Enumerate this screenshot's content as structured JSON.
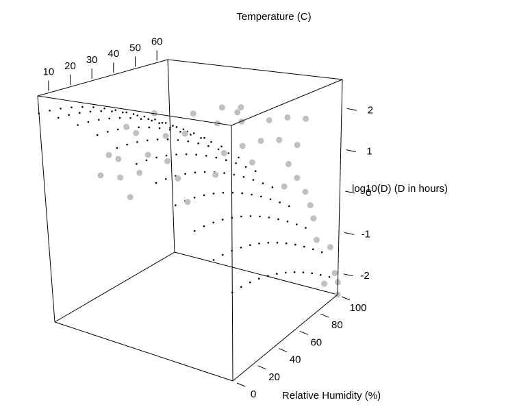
{
  "chart_data": {
    "type": "scatter",
    "subtype": "3d-surface-with-observations",
    "title": "",
    "axes": {
      "temperature": {
        "label": "Temperature (C)",
        "ticks": [
          10,
          20,
          30,
          40,
          50,
          60
        ],
        "range": [
          5,
          65
        ]
      },
      "humidity": {
        "label": "Relative Humidity (%)",
        "ticks": [
          0,
          20,
          40,
          60,
          80,
          100
        ],
        "range": [
          0,
          100
        ]
      },
      "logD": {
        "label": "log10(D) (D in hours)",
        "ticks": [
          2,
          1,
          0,
          -1,
          -2
        ],
        "range": [
          -2.5,
          2.7
        ]
      }
    },
    "surface": {
      "style": "dotted grid",
      "color": "#000000",
      "temperature_values": [
        5,
        10,
        15,
        20,
        25,
        30,
        35,
        40,
        45,
        50,
        55,
        60,
        65
      ],
      "humidity_values": [
        0,
        10,
        20,
        30,
        40,
        50,
        60,
        70,
        80,
        90,
        100
      ],
      "model": "logD = 2.3 - 0.0003*RH^2 - 0.0004*(T-5)^2"
    },
    "observations": {
      "color": "#c0c0c0",
      "points": [
        {
          "T": 10,
          "RH": 55,
          "logD": 2.6
        },
        {
          "T": 20,
          "RH": 65,
          "logD": 2.5
        },
        {
          "T": 30,
          "RH": 70,
          "logD": 2.5
        },
        {
          "T": 35,
          "RH": 75,
          "logD": 2.45
        },
        {
          "T": 36,
          "RH": 72,
          "logD": 2.3
        },
        {
          "T": 10,
          "RH": 40,
          "logD": 2.2
        },
        {
          "T": 10,
          "RH": 45,
          "logD": 2.1
        },
        {
          "T": 20,
          "RH": 50,
          "logD": 1.9
        },
        {
          "T": 25,
          "RH": 55,
          "logD": 1.9
        },
        {
          "T": 35,
          "RH": 62,
          "logD": 2.0
        },
        {
          "T": 40,
          "RH": 70,
          "logD": 2.0
        },
        {
          "T": 45,
          "RH": 80,
          "logD": 2.0
        },
        {
          "T": 50,
          "RH": 85,
          "logD": 2.0
        },
        {
          "T": 55,
          "RH": 90,
          "logD": 1.9
        },
        {
          "T": 10,
          "RH": 30,
          "logD": 1.5
        },
        {
          "T": 10,
          "RH": 35,
          "logD": 1.45
        },
        {
          "T": 20,
          "RH": 40,
          "logD": 1.4
        },
        {
          "T": 25,
          "RH": 45,
          "logD": 1.2
        },
        {
          "T": 40,
          "RH": 60,
          "logD": 1.2
        },
        {
          "T": 45,
          "RH": 65,
          "logD": 1.3
        },
        {
          "T": 50,
          "RH": 70,
          "logD": 1.35
        },
        {
          "T": 55,
          "RH": 75,
          "logD": 1.3
        },
        {
          "T": 60,
          "RH": 80,
          "logD": 1.1
        },
        {
          "T": 10,
          "RH": 25,
          "logD": 1.0
        },
        {
          "T": 15,
          "RH": 30,
          "logD": 0.9
        },
        {
          "T": 20,
          "RH": 35,
          "logD": 0.95
        },
        {
          "T": 30,
          "RH": 45,
          "logD": 0.7
        },
        {
          "T": 40,
          "RH": 55,
          "logD": 0.65
        },
        {
          "T": 50,
          "RH": 65,
          "logD": 0.8
        },
        {
          "T": 60,
          "RH": 75,
          "logD": 0.6
        },
        {
          "T": 60,
          "RH": 80,
          "logD": 0.3
        },
        {
          "T": 55,
          "RH": 78,
          "logD": 0.2
        },
        {
          "T": 60,
          "RH": 85,
          "logD": 0.0
        },
        {
          "T": 15,
          "RH": 35,
          "logD": 0.5
        },
        {
          "T": 30,
          "RH": 50,
          "logD": 0.2
        },
        {
          "T": 60,
          "RH": 88,
          "logD": -0.3
        },
        {
          "T": 60,
          "RH": 90,
          "logD": -0.6
        },
        {
          "T": 60,
          "RH": 92,
          "logD": -1.1
        },
        {
          "T": 65,
          "RH": 95,
          "logD": -1.4
        },
        {
          "T": 65,
          "RH": 98,
          "logD": -2.0
        },
        {
          "T": 60,
          "RH": 97,
          "logD": -2.1
        },
        {
          "T": 65,
          "RH": 100,
          "logD": -2.2
        },
        {
          "T": 65,
          "RH": 100,
          "logD": -2.5
        }
      ]
    },
    "grid": false,
    "legend": "none"
  }
}
